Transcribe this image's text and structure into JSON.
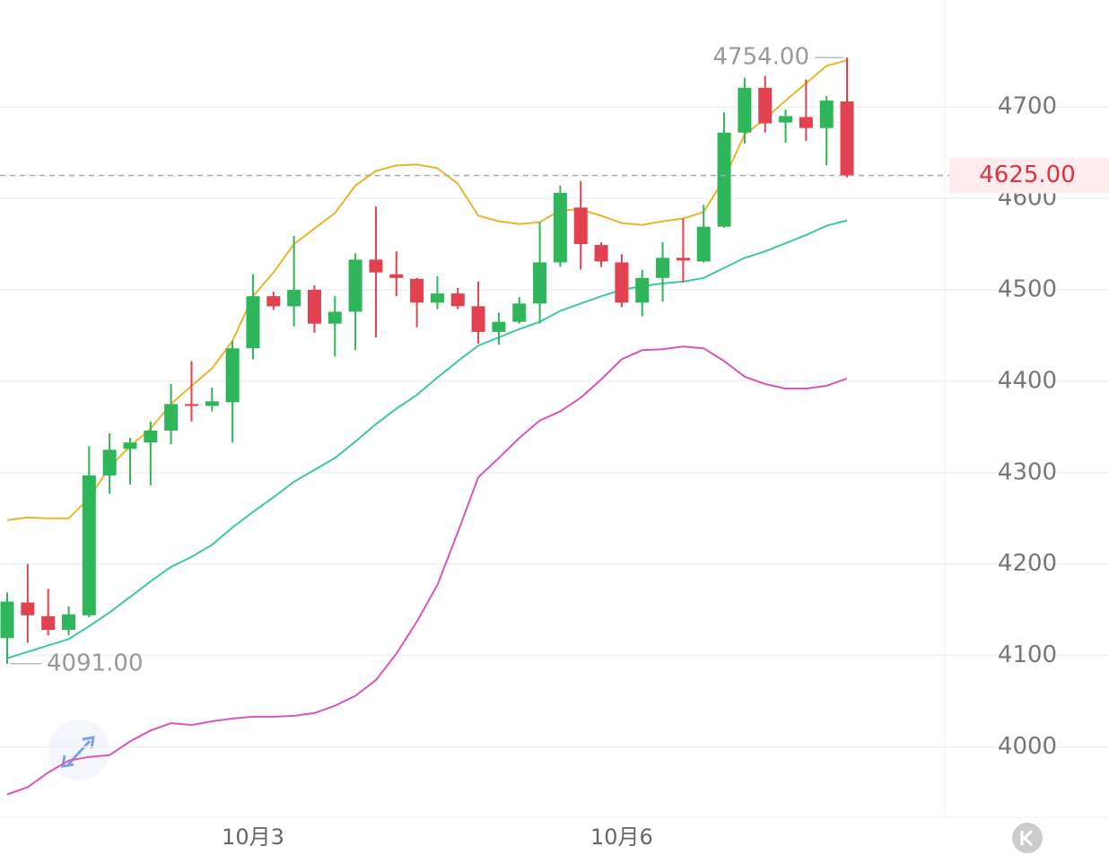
{
  "chart_data": {
    "type": "candlestick",
    "categories": [
      null,
      null,
      null,
      null,
      null,
      null,
      null,
      null,
      null,
      null,
      null,
      null,
      "10月3",
      null,
      null,
      null,
      null,
      null,
      null,
      null,
      null,
      null,
      null,
      null,
      null,
      null,
      null,
      null,
      null,
      null,
      "10月6",
      null,
      null,
      null,
      null,
      null,
      null,
      null,
      null,
      null,
      null,
      null
    ],
    "open": [
      4119,
      4158,
      4143,
      4128,
      4144,
      4297,
      4326,
      4333,
      4346,
      4375,
      4373,
      4377,
      4436,
      4493,
      4482,
      4500,
      4463,
      4476,
      4533,
      4517,
      4512,
      4486,
      4496,
      4482,
      4454,
      4465,
      4485,
      4530,
      4590,
      4549,
      4530,
      4486,
      4513,
      4535,
      4531,
      4569,
      4672,
      4721,
      4683,
      4689,
      4677,
      4706
    ],
    "high": [
      4169,
      4200,
      4173,
      4154,
      4329,
      4343,
      4338,
      4356,
      4397,
      4422,
      4393,
      4444,
      4517,
      4498,
      4559,
      4505,
      4493,
      4540,
      4591,
      4542,
      4513,
      4515,
      4502,
      4509,
      4475,
      4492,
      4574,
      4614,
      4619,
      4552,
      4539,
      4522,
      4552,
      4578,
      4593,
      4694,
      4732,
      4734,
      4697,
      4730,
      4712,
      4754
    ],
    "low": [
      4091,
      4114,
      4122,
      4122,
      4142,
      4277,
      4287,
      4286,
      4331,
      4356,
      4367,
      4333,
      4424,
      4478,
      4460,
      4453,
      4427,
      4434,
      4448,
      4493,
      4459,
      4479,
      4479,
      4441,
      4440,
      4463,
      4463,
      4525,
      4522,
      4525,
      4481,
      4471,
      4487,
      4508,
      4530,
      4568,
      4660,
      4672,
      4661,
      4663,
      4636,
      4623
    ],
    "close": [
      4159,
      4144,
      4128,
      4145,
      4297,
      4325,
      4333,
      4346,
      4375,
      4373,
      4378,
      4436,
      4493,
      4482,
      4500,
      4463,
      4476,
      4533,
      4519,
      4513,
      4486,
      4496,
      4482,
      4454,
      4465,
      4485,
      4530,
      4606,
      4550,
      4531,
      4486,
      4513,
      4535,
      4532,
      4569,
      4672,
      4721,
      4682,
      4690,
      4677,
      4707,
      4625
    ],
    "up_color": "#2fb55a",
    "down_color": "#e2414f",
    "overlays": [
      {
        "color": "#e8b62c",
        "values": [
          4248,
          4251,
          4250,
          4250,
          4272,
          4306,
          4329,
          4348,
          4375,
          4395,
          4414,
          4444,
          4493,
          4519,
          4550,
          4567,
          4584,
          4614,
          4630,
          4636,
          4637,
          4633,
          4616,
          4581,
          4575,
          4572,
          4574,
          4587,
          4588,
          4581,
          4573,
          4571,
          4575,
          4578,
          4585,
          4621,
          4670,
          4687,
          4707,
          4726,
          4745,
          4751
        ]
      },
      {
        "color": "#3ec7a6",
        "values": [
          4097,
          4104,
          4111,
          4118,
          4132,
          4147,
          4164,
          4181,
          4197,
          4208,
          4221,
          4240,
          4257,
          4273,
          4290,
          4303,
          4316,
          4334,
          4353,
          4370,
          4385,
          4404,
          4422,
          4439,
          4448,
          4457,
          4465,
          4477,
          4485,
          4493,
          4500,
          4504,
          4507,
          4509,
          4513,
          4524,
          4535,
          4542,
          4551,
          4560,
          4570,
          4576
        ]
      },
      {
        "color": "#d957b2",
        "values": [
          3948,
          3956,
          3972,
          3985,
          3989,
          3991,
          4006,
          4018,
          4026,
          4024,
          4028,
          4031,
          4033,
          4033,
          4034,
          4037,
          4045,
          4056,
          4073,
          4102,
          4137,
          4177,
          4235,
          4295,
          4316,
          4338,
          4357,
          4367,
          4382,
          4402,
          4424,
          4434,
          4435,
          4438,
          4436,
          4422,
          4405,
          4397,
          4392,
          4392,
          4395,
          4403
        ]
      }
    ],
    "ylim": [
      3923,
      4817
    ],
    "yticks": [
      4000,
      4100,
      4200,
      4300,
      4400,
      4500,
      4600,
      4700
    ],
    "grid": true,
    "high_annotation": {
      "value": 4754,
      "label": "4754.00"
    },
    "low_annotation": {
      "value": 4091,
      "label": "4091.00"
    },
    "last_price": {
      "value": 4625,
      "label": "4625.00"
    }
  }
}
